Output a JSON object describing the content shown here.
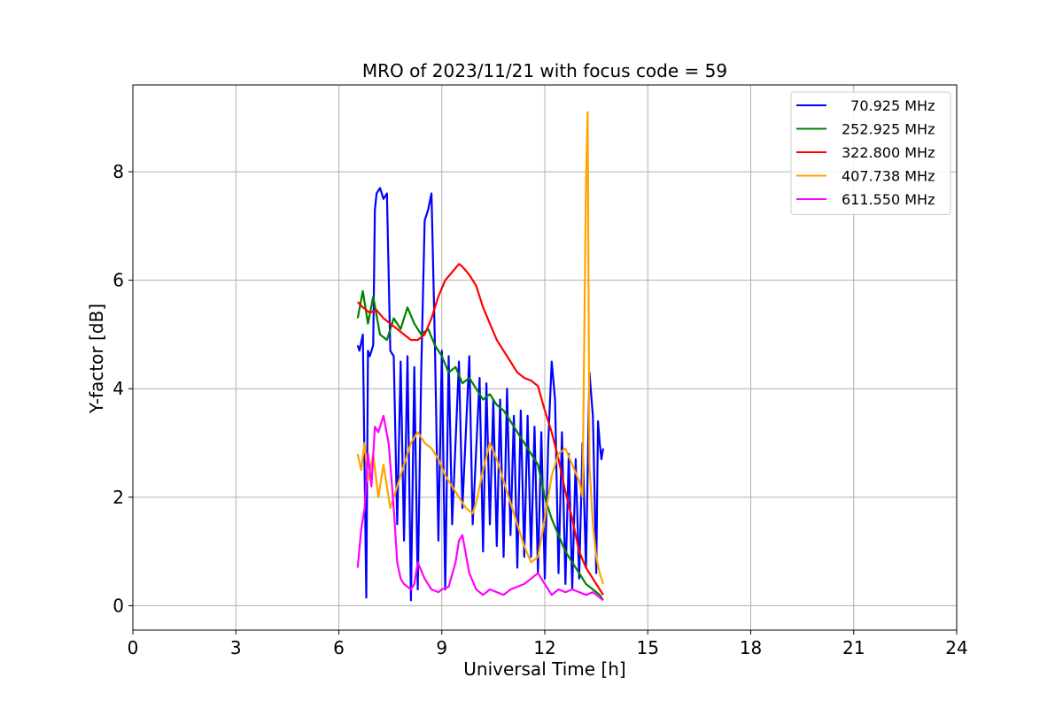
{
  "chart_data": {
    "type": "line",
    "title": "MRO of 2023/11/21 with focus code = 59",
    "xlabel": "Universal Time [h]",
    "ylabel": "Y-factor [dB]",
    "xlim": [
      0,
      24
    ],
    "ylim": [
      -0.45,
      9.6
    ],
    "xticks": [
      0,
      3,
      6,
      9,
      12,
      15,
      18,
      21,
      24
    ],
    "yticks": [
      0,
      2,
      4,
      6,
      8
    ],
    "grid": true,
    "legend_position": "top-right",
    "series": [
      {
        "name": "70.925 MHz",
        "label": "  70.925 MHz",
        "color": "#0000ff",
        "x": [
          6.55,
          6.6,
          6.7,
          6.8,
          6.85,
          6.9,
          7.0,
          7.05,
          7.1,
          7.2,
          7.3,
          7.4,
          7.5,
          7.6,
          7.7,
          7.8,
          7.9,
          8.0,
          8.1,
          8.2,
          8.3,
          8.4,
          8.5,
          8.6,
          8.7,
          8.8,
          8.9,
          9.0,
          9.1,
          9.2,
          9.3,
          9.5,
          9.6,
          9.8,
          9.9,
          10.1,
          10.2,
          10.3,
          10.4,
          10.5,
          10.6,
          10.7,
          10.8,
          10.9,
          11.0,
          11.1,
          11.2,
          11.3,
          11.4,
          11.5,
          11.6,
          11.7,
          11.8,
          11.9,
          12.0,
          12.1,
          12.2,
          12.3,
          12.4,
          12.5,
          12.6,
          12.7,
          12.8,
          12.9,
          13.0,
          13.1,
          13.2,
          13.3,
          13.4,
          13.5,
          13.55,
          13.6,
          13.65,
          13.7
        ],
        "y": [
          4.8,
          4.7,
          5.0,
          0.15,
          4.7,
          4.6,
          4.8,
          7.3,
          7.6,
          7.7,
          7.5,
          7.6,
          4.7,
          4.6,
          1.5,
          4.5,
          1.2,
          4.6,
          0.1,
          4.4,
          0.3,
          4.3,
          7.1,
          7.3,
          7.6,
          4.8,
          1.2,
          4.7,
          0.3,
          4.6,
          1.5,
          4.5,
          1.8,
          4.6,
          1.5,
          4.2,
          1.0,
          4.1,
          1.5,
          3.8,
          1.1,
          3.8,
          0.9,
          4.0,
          1.3,
          3.5,
          0.7,
          3.6,
          0.9,
          3.5,
          0.9,
          3.3,
          0.6,
          3.2,
          0.5,
          3.0,
          4.5,
          3.8,
          0.6,
          3.2,
          0.4,
          2.8,
          0.3,
          2.7,
          0.5,
          3.0,
          0.7,
          4.3,
          3.5,
          0.6,
          3.4,
          3.0,
          2.7,
          2.9
        ]
      },
      {
        "name": "252.925 MHz",
        "label": "252.925 MHz",
        "color": "#008000",
        "x": [
          6.55,
          6.7,
          6.85,
          7.0,
          7.2,
          7.4,
          7.6,
          7.8,
          8.0,
          8.2,
          8.4,
          8.6,
          8.8,
          9.0,
          9.2,
          9.4,
          9.6,
          9.8,
          10.0,
          10.2,
          10.4,
          10.6,
          10.8,
          11.0,
          11.2,
          11.4,
          11.6,
          11.8,
          12.0,
          12.2,
          12.4,
          12.6,
          12.8,
          13.0,
          13.2,
          13.4,
          13.6,
          13.7
        ],
        "y": [
          5.3,
          5.8,
          5.2,
          5.7,
          5.0,
          4.9,
          5.3,
          5.1,
          5.5,
          5.2,
          5.0,
          5.1,
          4.8,
          4.6,
          4.3,
          4.4,
          4.1,
          4.2,
          4.0,
          3.8,
          3.9,
          3.7,
          3.6,
          3.4,
          3.2,
          3.0,
          2.8,
          2.6,
          2.0,
          1.6,
          1.3,
          1.0,
          0.8,
          0.6,
          0.4,
          0.3,
          0.2,
          0.1
        ]
      },
      {
        "name": "322.800 MHz",
        "label": "322.800 MHz",
        "color": "#ff0000",
        "x": [
          6.55,
          6.7,
          6.9,
          7.1,
          7.3,
          7.5,
          7.7,
          7.9,
          8.1,
          8.3,
          8.5,
          8.7,
          8.9,
          9.1,
          9.3,
          9.5,
          9.6,
          9.8,
          10.0,
          10.2,
          10.4,
          10.6,
          10.8,
          11.0,
          11.2,
          11.4,
          11.6,
          11.8,
          12.0,
          12.2,
          12.4,
          12.6,
          12.8,
          13.0,
          13.2,
          13.4,
          13.6,
          13.7
        ],
        "y": [
          5.6,
          5.5,
          5.4,
          5.45,
          5.3,
          5.2,
          5.1,
          5.0,
          4.9,
          4.9,
          5.0,
          5.3,
          5.7,
          6.0,
          6.15,
          6.3,
          6.25,
          6.1,
          5.9,
          5.5,
          5.2,
          4.9,
          4.7,
          4.5,
          4.3,
          4.2,
          4.15,
          4.05,
          3.6,
          3.2,
          2.7,
          2.1,
          1.6,
          1.0,
          0.7,
          0.5,
          0.3,
          0.2
        ]
      },
      {
        "name": "407.738 MHz",
        "label": "407.738 MHz",
        "color": "#ffa500",
        "x": [
          6.55,
          6.65,
          6.75,
          6.85,
          7.0,
          7.15,
          7.3,
          7.5,
          7.7,
          7.9,
          8.1,
          8.3,
          8.5,
          8.7,
          8.9,
          9.1,
          9.3,
          9.5,
          9.7,
          9.9,
          10.0,
          10.2,
          10.4,
          10.6,
          10.8,
          11.0,
          11.2,
          11.4,
          11.6,
          11.8,
          12.0,
          12.2,
          12.4,
          12.6,
          12.8,
          13.0,
          13.1,
          13.2,
          13.25,
          13.3,
          13.4,
          13.5,
          13.6,
          13.7
        ],
        "y": [
          2.8,
          2.5,
          3.0,
          2.3,
          2.8,
          2.0,
          2.6,
          1.8,
          2.2,
          2.6,
          3.0,
          3.2,
          3.0,
          2.9,
          2.7,
          2.4,
          2.2,
          2.0,
          1.8,
          1.7,
          1.9,
          2.5,
          3.0,
          2.7,
          2.3,
          1.9,
          1.5,
          1.1,
          0.8,
          0.9,
          1.6,
          2.4,
          2.8,
          2.9,
          2.6,
          2.3,
          2.0,
          7.8,
          9.1,
          2.6,
          1.5,
          0.9,
          0.6,
          0.4
        ]
      },
      {
        "name": "611.550 MHz",
        "label": "611.550 MHz",
        "color": "#ff00ff",
        "x": [
          6.55,
          6.65,
          6.75,
          6.85,
          6.95,
          7.05,
          7.15,
          7.3,
          7.45,
          7.6,
          7.7,
          7.8,
          7.9,
          8.0,
          8.1,
          8.2,
          8.3,
          8.5,
          8.7,
          8.9,
          9.0,
          9.2,
          9.4,
          9.5,
          9.6,
          9.8,
          10.0,
          10.2,
          10.4,
          10.6,
          10.8,
          11.0,
          11.2,
          11.4,
          11.6,
          11.8,
          12.0,
          12.2,
          12.4,
          12.6,
          12.8,
          13.0,
          13.2,
          13.4,
          13.6,
          13.7
        ],
        "y": [
          0.7,
          1.4,
          1.8,
          2.8,
          2.2,
          3.3,
          3.2,
          3.5,
          3.0,
          1.8,
          0.8,
          0.5,
          0.4,
          0.35,
          0.3,
          0.4,
          0.8,
          0.5,
          0.3,
          0.25,
          0.3,
          0.35,
          0.8,
          1.2,
          1.3,
          0.6,
          0.3,
          0.2,
          0.3,
          0.25,
          0.2,
          0.3,
          0.35,
          0.4,
          0.5,
          0.6,
          0.4,
          0.2,
          0.3,
          0.25,
          0.3,
          0.25,
          0.2,
          0.25,
          0.15,
          0.1
        ]
      }
    ]
  }
}
